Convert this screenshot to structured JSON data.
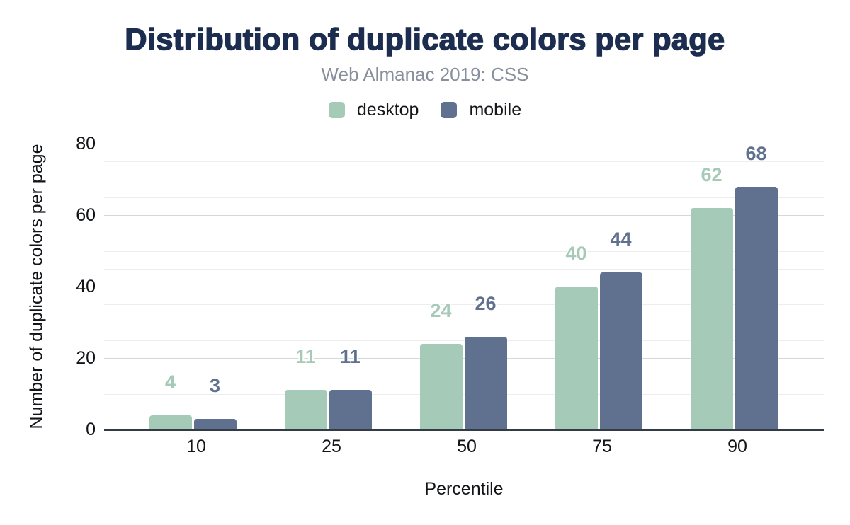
{
  "header": {
    "title": "Distribution of duplicate colors per page",
    "subtitle": "Web Almanac 2019: CSS"
  },
  "legend": {
    "items": [
      {
        "label": "desktop",
        "color": "#a6cab8"
      },
      {
        "label": "mobile",
        "color": "#60708f"
      }
    ]
  },
  "chart_data": {
    "type": "bar",
    "title": "Distribution of duplicate colors per page",
    "subtitle": "Web Almanac 2019: CSS",
    "categories": [
      "10",
      "25",
      "50",
      "75",
      "90"
    ],
    "series": [
      {
        "name": "desktop",
        "color": "#a6cab8",
        "values": [
          4,
          11,
          24,
          40,
          62
        ]
      },
      {
        "name": "mobile",
        "color": "#60708f",
        "values": [
          3,
          11,
          26,
          44,
          68
        ]
      }
    ],
    "xlabel": "Percentile",
    "ylabel": "Number of duplicate colors per page",
    "ylim": [
      0,
      80
    ],
    "yticks": [
      0,
      20,
      40,
      60,
      80
    ],
    "minor_grid_step": 5,
    "grid": true,
    "legend_position": "top",
    "data_labels": true
  },
  "colors": {
    "title_text": "#1c2d50",
    "subtitle_text": "#878f9d",
    "axis_text": "#121418",
    "baseline": "#333c45",
    "grid_major": "#d4d8db",
    "grid_minor": "#ebedee",
    "background": "#ffffff"
  }
}
